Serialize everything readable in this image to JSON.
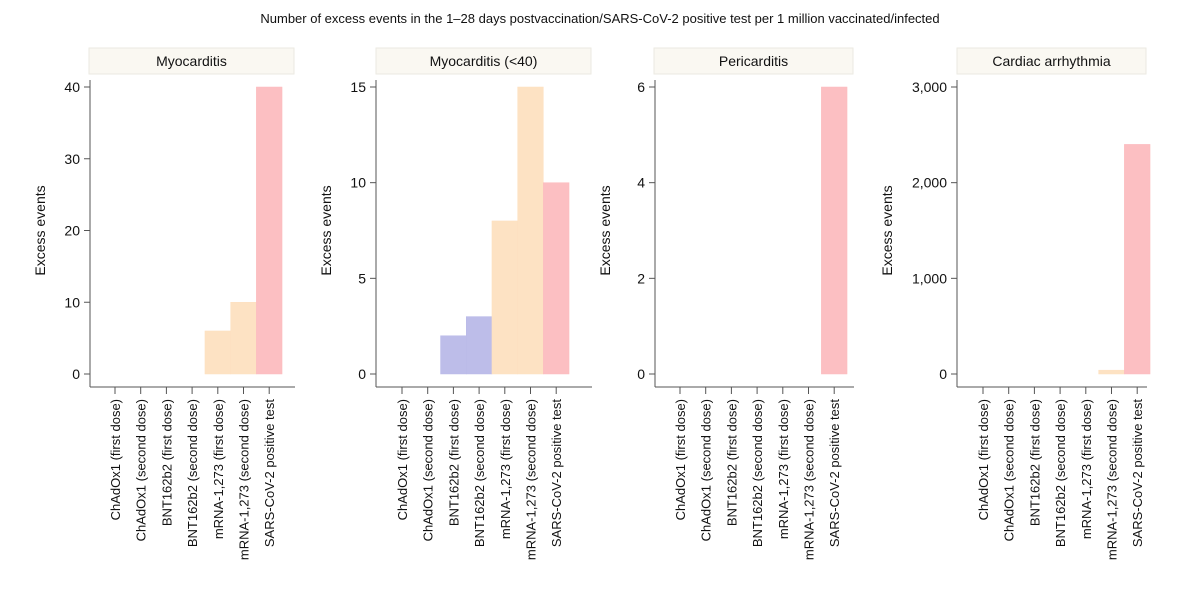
{
  "chart_data": {
    "type": "bar",
    "title": "Number of excess events in the 1–28 days postvaccination/SARS-CoV-2 positive test per 1 million vaccinated/infected",
    "categories": [
      "ChAdOx1 (first dose)",
      "ChAdOx1 (second dose)",
      "BNT162b2 (first dose)",
      "BNT162b2 (second dose)",
      "mRNA-1,273 (first dose)",
      "mRNA-1,273 (second dose)",
      "SARS-CoV-2 positive test"
    ],
    "category_colors": [
      "#b9b9e8",
      "#b9b9e8",
      "#b9b9e8",
      "#b9b9e8",
      "#fde0c0",
      "#fde0c0",
      "#fcbcbf"
    ],
    "colors": {
      "BNT162b2": "#b9b9e8",
      "mRNA-1,273": "#fde0c0",
      "SARS-CoV-2": "#fcbcbf",
      "strip_bg": "#faf8f2",
      "axis": "#555555"
    },
    "panels": [
      {
        "title": "Myocarditis",
        "ylabel": "Excess events",
        "ylim": [
          0,
          40
        ],
        "yticks": [
          0,
          10,
          20,
          30,
          40
        ],
        "ytick_labels": [
          "0",
          "10",
          "20",
          "30",
          "40"
        ],
        "values": [
          0,
          0,
          0,
          0,
          6,
          10,
          40
        ]
      },
      {
        "title": "Myocarditis (<40)",
        "ylabel": "Excess events",
        "ylim": [
          0,
          15
        ],
        "yticks": [
          0,
          5,
          10,
          15
        ],
        "ytick_labels": [
          "0",
          "5",
          "10",
          "15"
        ],
        "values": [
          0,
          0,
          2,
          3,
          8,
          15,
          10
        ]
      },
      {
        "title": "Pericarditis",
        "ylabel": "Excess events",
        "ylim": [
          0,
          6
        ],
        "yticks": [
          0,
          2,
          4,
          6
        ],
        "ytick_labels": [
          "0",
          "2",
          "4",
          "6"
        ],
        "values": [
          0,
          0,
          0,
          0,
          0,
          0,
          6
        ]
      },
      {
        "title": "Cardiac arrhythmia",
        "ylabel": "Excess events",
        "ylim": [
          0,
          3000
        ],
        "yticks": [
          0,
          1000,
          2000,
          3000
        ],
        "ytick_labels": [
          "0",
          "1,000",
          "2,000",
          "3,000"
        ],
        "values": [
          0,
          0,
          0,
          0,
          0,
          40,
          2400
        ]
      }
    ],
    "xlabel": "",
    "grid": false,
    "legend": "none"
  }
}
